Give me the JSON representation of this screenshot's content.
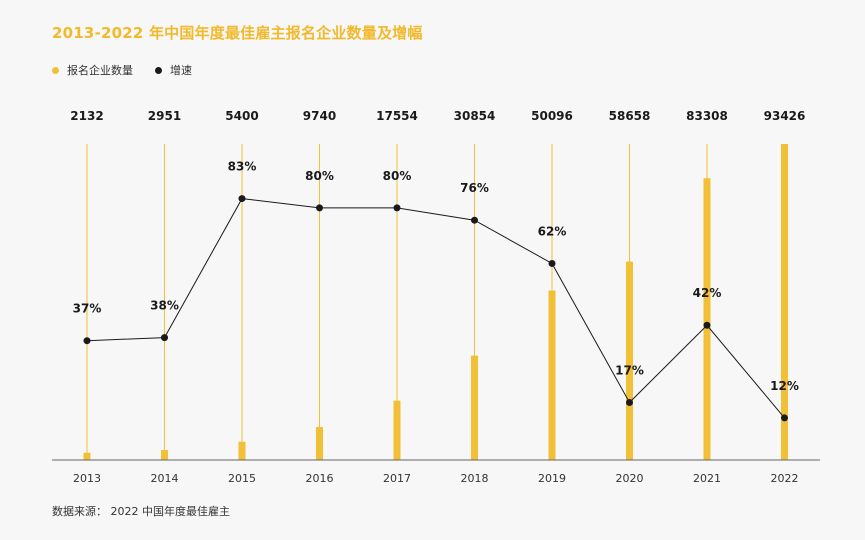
{
  "title": "2013-2022 年中国年度最佳雇主报名企业数量及增幅",
  "legend": [
    {
      "label": "报名企业数量",
      "color": "#f2c037"
    },
    {
      "label": "增速",
      "color": "#1a1a1a"
    }
  ],
  "source": "数据来源： 2022 中国年度最佳雇主",
  "chart_data": {
    "type": "bar",
    "categories": [
      "2013",
      "2014",
      "2015",
      "2016",
      "2017",
      "2018",
      "2019",
      "2020",
      "2021",
      "2022"
    ],
    "series": [
      {
        "name": "报名企业数量",
        "type": "bar",
        "values": [
          2132,
          2951,
          5400,
          9740,
          17554,
          30854,
          50096,
          58658,
          83308,
          93426
        ],
        "labels": [
          "2132",
          "2951",
          "5400",
          "9740",
          "17554",
          "30854",
          "50096",
          "58658",
          "83308",
          "93426"
        ]
      },
      {
        "name": "增速",
        "type": "line",
        "values": [
          37,
          38,
          83,
          80,
          80,
          76,
          62,
          17,
          42,
          12
        ],
        "labels": [
          "37%",
          "38%",
          "83%",
          "80%",
          "80%",
          "76%",
          "62%",
          "17%",
          "42%",
          "12%"
        ]
      }
    ],
    "grid": false,
    "legend_position": "top-left"
  }
}
